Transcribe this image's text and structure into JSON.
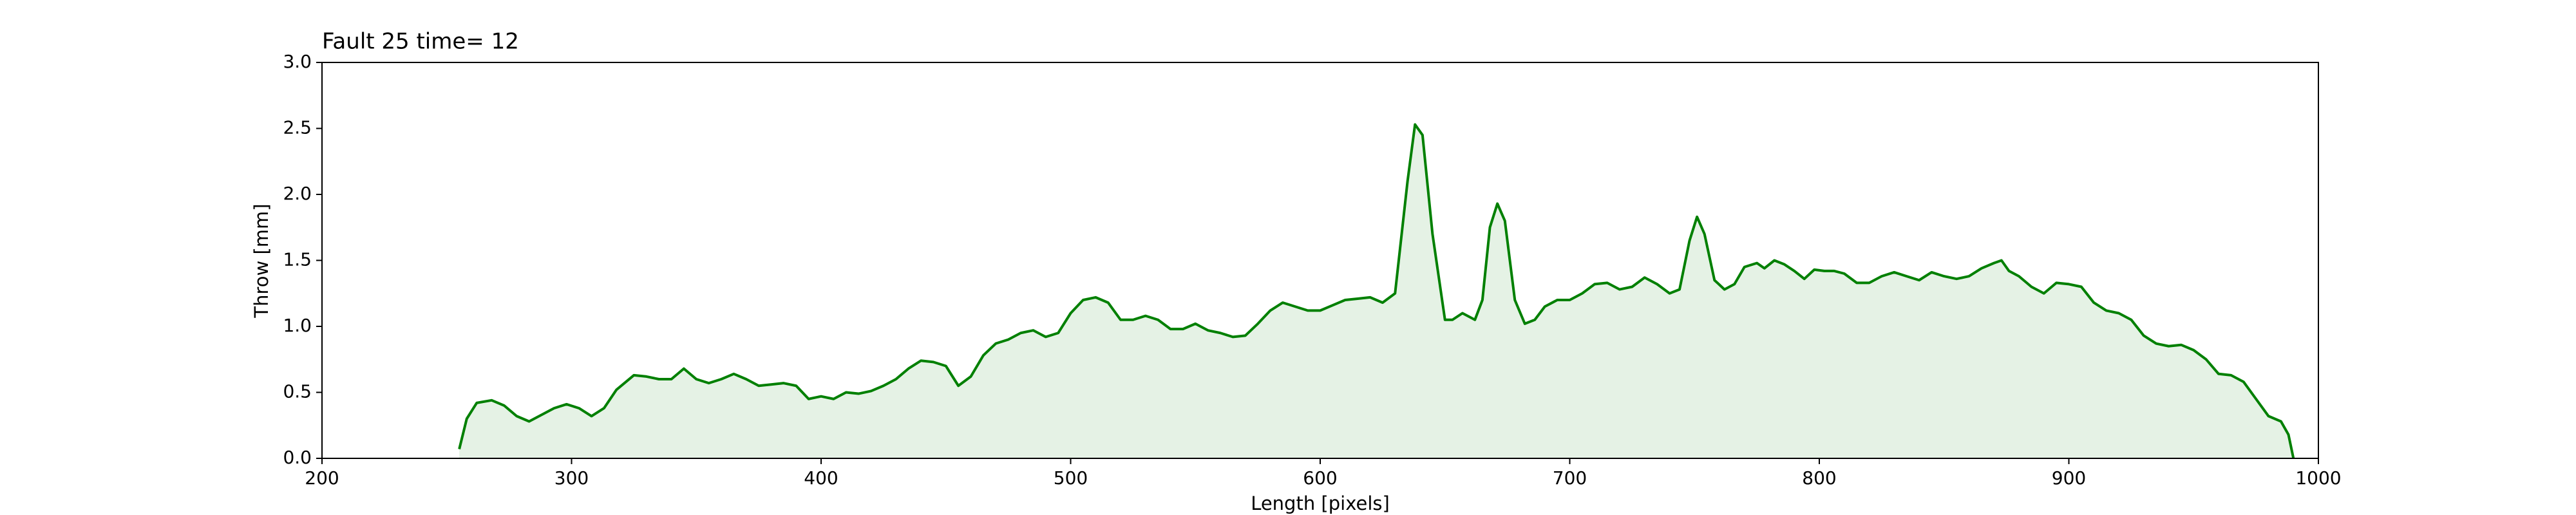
{
  "chart_data": {
    "type": "line",
    "title": "Fault 25 time= 12",
    "xlabel": "Length [pixels]",
    "ylabel": "Throw [mm]",
    "xlim": [
      200,
      1000
    ],
    "ylim": [
      0,
      3
    ],
    "xticks": [
      200,
      300,
      400,
      500,
      600,
      700,
      800,
      900,
      1000
    ],
    "yticks": [
      {
        "value": 0,
        "label": "0.0"
      },
      0.5,
      {
        "value": 1,
        "label": "1.0"
      },
      1.5,
      {
        "value": 2,
        "label": "2.0"
      },
      2.5,
      {
        "value": 3,
        "label": "3.0"
      }
    ],
    "grid": false,
    "fill": true,
    "series": [
      {
        "color": "#008000",
        "x": [
          255,
          258,
          262,
          268,
          273,
          278,
          283,
          288,
          293,
          298,
          303,
          308,
          313,
          318,
          325,
          330,
          335,
          340,
          345,
          350,
          355,
          360,
          365,
          370,
          375,
          380,
          385,
          390,
          395,
          400,
          405,
          410,
          415,
          420,
          425,
          430,
          435,
          440,
          445,
          450,
          455,
          460,
          465,
          470,
          475,
          480,
          485,
          490,
          495,
          500,
          505,
          510,
          515,
          520,
          525,
          530,
          535,
          540,
          545,
          550,
          555,
          560,
          565,
          570,
          575,
          580,
          585,
          590,
          595,
          600,
          605,
          610,
          615,
          620,
          625,
          630,
          635,
          638,
          641,
          645,
          650,
          653,
          657,
          662,
          665,
          668,
          671,
          674,
          678,
          682,
          686,
          690,
          695,
          700,
          705,
          710,
          715,
          720,
          725,
          730,
          735,
          740,
          744,
          748,
          751,
          754,
          758,
          762,
          766,
          770,
          775,
          778,
          782,
          786,
          790,
          794,
          798,
          802,
          806,
          810,
          815,
          820,
          825,
          830,
          835,
          840,
          845,
          850,
          855,
          860,
          865,
          870,
          873,
          876,
          880,
          885,
          890,
          895,
          900,
          905,
          910,
          915,
          920,
          925,
          930,
          935,
          940,
          945,
          950,
          955,
          960,
          965,
          970,
          975,
          980,
          985,
          988,
          990
        ],
        "values": [
          0.07,
          0.3,
          0.42,
          0.44,
          0.4,
          0.32,
          0.28,
          0.33,
          0.38,
          0.41,
          0.38,
          0.32,
          0.38,
          0.52,
          0.63,
          0.62,
          0.6,
          0.6,
          0.68,
          0.6,
          0.57,
          0.6,
          0.64,
          0.6,
          0.55,
          0.56,
          0.57,
          0.55,
          0.45,
          0.47,
          0.45,
          0.5,
          0.49,
          0.51,
          0.55,
          0.6,
          0.68,
          0.74,
          0.73,
          0.7,
          0.55,
          0.62,
          0.78,
          0.87,
          0.9,
          0.95,
          0.97,
          0.92,
          0.95,
          1.1,
          1.2,
          1.22,
          1.18,
          1.05,
          1.05,
          1.08,
          1.05,
          0.98,
          0.98,
          1.02,
          0.97,
          0.95,
          0.92,
          0.93,
          1.02,
          1.12,
          1.18,
          1.15,
          1.12,
          1.12,
          1.16,
          1.2,
          1.21,
          1.22,
          1.18,
          1.25,
          2.1,
          2.53,
          2.45,
          1.7,
          1.05,
          1.05,
          1.1,
          1.05,
          1.2,
          1.75,
          1.93,
          1.8,
          1.2,
          1.02,
          1.05,
          1.15,
          1.2,
          1.2,
          1.25,
          1.32,
          1.33,
          1.28,
          1.3,
          1.37,
          1.32,
          1.25,
          1.28,
          1.65,
          1.83,
          1.7,
          1.35,
          1.28,
          1.32,
          1.45,
          1.48,
          1.44,
          1.5,
          1.47,
          1.42,
          1.36,
          1.43,
          1.42,
          1.42,
          1.4,
          1.33,
          1.33,
          1.38,
          1.41,
          1.38,
          1.35,
          1.41,
          1.38,
          1.36,
          1.38,
          1.44,
          1.48,
          1.5,
          1.42,
          1.38,
          1.3,
          1.25,
          1.33,
          1.32,
          1.3,
          1.18,
          1.12,
          1.1,
          1.05,
          0.93,
          0.87,
          0.85,
          0.86,
          0.82,
          0.75,
          0.64,
          0.63,
          0.58,
          0.45,
          0.32,
          0.28,
          0.18,
          0.0
        ]
      }
    ]
  }
}
